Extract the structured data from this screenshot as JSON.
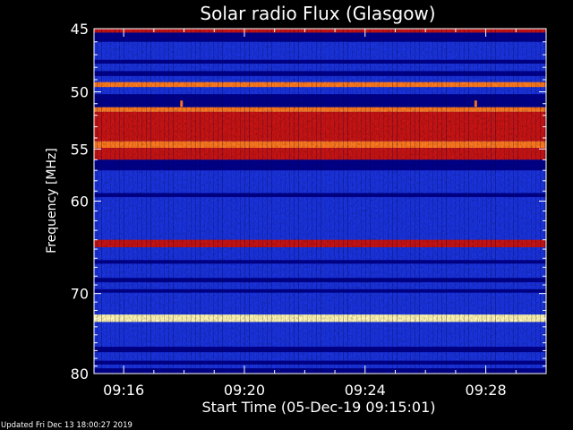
{
  "chart_data": {
    "type": "heatmap",
    "title": "Solar radio Flux (Glasgow)",
    "ylabel": "Frequency [MHz]",
    "xlabel": "Start Time (05-Dec-19 09:15:01)",
    "y_scale": "log",
    "ylim": [
      45,
      80
    ],
    "y_ticks": [
      45,
      50,
      55,
      60,
      70,
      80
    ],
    "y_tick_labels": [
      "45",
      "50",
      "55",
      "60",
      "70",
      "80"
    ],
    "xlim": [
      "09:15:01",
      "09:30:00"
    ],
    "x_ticks": [
      "09:16",
      "09:20",
      "09:24",
      "09:28"
    ],
    "x_tick_labels": [
      "09:16",
      "09:20",
      "09:24",
      "09:28"
    ],
    "colors": {
      "background": "#1a33dd",
      "low": "#00008c",
      "medium": "#c81414",
      "high": "#ff7a1e",
      "peak": "#fff6b0"
    },
    "bands": [
      {
        "freq_start": 45.0,
        "freq_end": 45.3,
        "level": "medium"
      },
      {
        "freq_start": 45.3,
        "freq_end": 46.0,
        "level": "low"
      },
      {
        "freq_start": 47.4,
        "freq_end": 47.7,
        "level": "low"
      },
      {
        "freq_start": 48.3,
        "freq_end": 48.7,
        "level": "low"
      },
      {
        "freq_start": 49.2,
        "freq_end": 49.6,
        "level": "high",
        "note": "periodic bursts"
      },
      {
        "freq_start": 50.2,
        "freq_end": 51.3,
        "level": "low"
      },
      {
        "freq_start": 51.3,
        "freq_end": 51.7,
        "level": "high"
      },
      {
        "freq_start": 51.7,
        "freq_end": 54.3,
        "level": "medium"
      },
      {
        "freq_start": 54.3,
        "freq_end": 54.9,
        "level": "high"
      },
      {
        "freq_start": 54.9,
        "freq_end": 56.0,
        "level": "medium"
      },
      {
        "freq_start": 56.0,
        "freq_end": 57.0,
        "level": "low"
      },
      {
        "freq_start": 59.2,
        "freq_end": 59.6,
        "level": "low"
      },
      {
        "freq_start": 64.0,
        "freq_end": 64.8,
        "level": "medium"
      },
      {
        "freq_start": 66.2,
        "freq_end": 66.6,
        "level": "low"
      },
      {
        "freq_start": 68.2,
        "freq_end": 68.7,
        "level": "low"
      },
      {
        "freq_start": 69.5,
        "freq_end": 69.9,
        "level": "low"
      },
      {
        "freq_start": 72.5,
        "freq_end": 73.4,
        "level": "peak"
      },
      {
        "freq_start": 76.5,
        "freq_end": 77.2,
        "level": "low"
      },
      {
        "freq_start": 78.3,
        "freq_end": 78.8,
        "level": "low"
      },
      {
        "freq_start": 79.3,
        "freq_end": 80.0,
        "level": "low"
      }
    ],
    "bursts": [
      {
        "time": "09:17:55",
        "freq": 51.0
      },
      {
        "time": "09:27:40",
        "freq": 51.0
      }
    ]
  },
  "footer": {
    "updated": "Updated Fri Dec 13 18:00:27 2019"
  }
}
